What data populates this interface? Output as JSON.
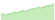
{
  "chart_data": {
    "type": "area",
    "values": [
      3,
      4,
      3,
      3.5,
      4,
      4,
      5,
      4.5,
      5,
      5.5,
      6,
      5.5,
      6,
      6.5,
      7,
      7,
      7.5,
      8,
      7.5,
      8,
      8.5,
      9,
      9,
      9.5,
      10
    ],
    "color": "#8fd97a",
    "tick_labels": false
  }
}
